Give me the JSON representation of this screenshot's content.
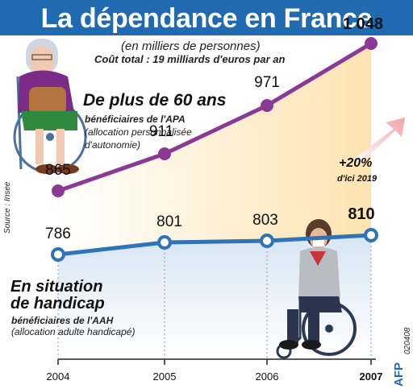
{
  "title": "La dépendance en France",
  "unit_note": "(en milliers de personnes)",
  "total_cost": "Coût total : 19 milliards d'euros par an",
  "source": "Source : Insee",
  "credit": "AFP",
  "credit_code": "020408",
  "apa": {
    "heading": "De plus de 60 ans",
    "line1": "bénéficiaires de l'APA",
    "line2": "(allocation personnalisée",
    "line3": "d'autonomie)"
  },
  "aah": {
    "heading1": "En situation",
    "heading2": "de handicap",
    "line1": "bénéficiaires de l'AAH",
    "line2": "(allocation adulte handicapé)"
  },
  "forecast": {
    "value": "+20%",
    "label": "d'ici 2019"
  },
  "colors": {
    "apa": "#8a3a93",
    "aah": "#2f73b8",
    "title_bg": "#1f6ab0"
  },
  "chart_data": {
    "type": "line",
    "title": "La dépendance en France",
    "x": [
      "2004",
      "2005",
      "2006",
      "2007"
    ],
    "series": [
      {
        "name": "De plus de 60 ans",
        "values": [
          865,
          911,
          971,
          1048
        ],
        "labels": [
          "865",
          "911",
          "971",
          "1 048"
        ]
      },
      {
        "name": "En situation de handicap",
        "values": [
          786,
          801,
          803,
          810
        ],
        "labels": [
          "786",
          "801",
          "803",
          "810"
        ]
      }
    ]
  }
}
